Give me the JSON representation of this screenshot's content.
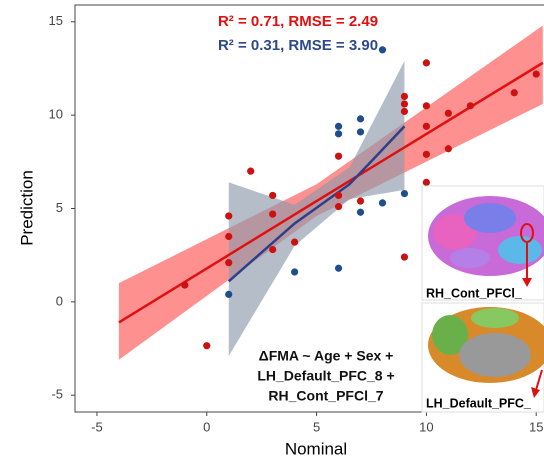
{
  "chart_data": {
    "type": "scatter",
    "xlabel": "Nominal",
    "ylabel": "Prediction",
    "xlim": [
      -6,
      15.4
    ],
    "ylim": [
      -5.9,
      15.9
    ],
    "xticks": [
      -5,
      0,
      5,
      10,
      15
    ],
    "yticks": [
      -5,
      0,
      5,
      10,
      15
    ],
    "series": [
      {
        "color": "#cc1111",
        "x": [
          -1,
          0,
          1,
          1,
          1,
          2,
          3,
          3,
          3,
          4,
          6,
          6,
          6,
          7,
          9,
          9,
          9,
          9,
          10,
          10,
          10,
          10,
          10,
          11,
          11,
          12,
          14,
          15
        ],
        "values": [
          0.9,
          -2.35,
          4.6,
          3.5,
          2.1,
          7.0,
          5.7,
          4.7,
          2.8,
          3.2,
          7.8,
          5.7,
          5.1,
          5.4,
          11.0,
          10.6,
          10.2,
          2.4,
          12.8,
          10.5,
          9.4,
          7.9,
          6.4,
          10.1,
          8.2,
          10.5,
          11.2,
          12.2
        ]
      },
      {
        "color": "#1f4e8c",
        "x": [
          1,
          4,
          6,
          6,
          6,
          7,
          7,
          7,
          8,
          8,
          9
        ],
        "values": [
          0.4,
          1.6,
          1.8,
          9.4,
          9.0,
          9.8,
          9.1,
          4.8,
          13.5,
          5.3,
          5.8
        ]
      }
    ],
    "fits": [
      {
        "color": "#e01010",
        "band_color": "#ff6b6b",
        "x": [
          -4,
          5,
          15.3
        ],
        "values": [
          -1.1,
          5.4,
          12.8
        ],
        "lower": [
          -3.1,
          4.6,
          10.6
        ],
        "upper": [
          1.0,
          6.3,
          14.8
        ]
      },
      {
        "color": "#2d3f8a",
        "band_color": "#8d99aa",
        "x": [
          1,
          4,
          6.5,
          9
        ],
        "values": [
          1.1,
          4.2,
          6.3,
          9.4
        ],
        "lower": [
          -2.9,
          3.0,
          5.5,
          6.0
        ],
        "upper": [
          6.4,
          5.2,
          7.2,
          12.9
        ]
      }
    ],
    "annotations": [
      {
        "text": "R² = 0.71, RMSE = 2.49",
        "color": "#e01010"
      },
      {
        "text": "R² = 0.31, RMSE = 3.90",
        "color": "#2d4a8a"
      }
    ],
    "formula": [
      "ΔFMA ~ Age + Sex +",
      "LH_Default_PFC_8 +",
      "RH_Cont_PFCl_7"
    ],
    "insets": [
      "RH_Cont_PFCl_",
      "LH_Default_PFC_"
    ]
  }
}
